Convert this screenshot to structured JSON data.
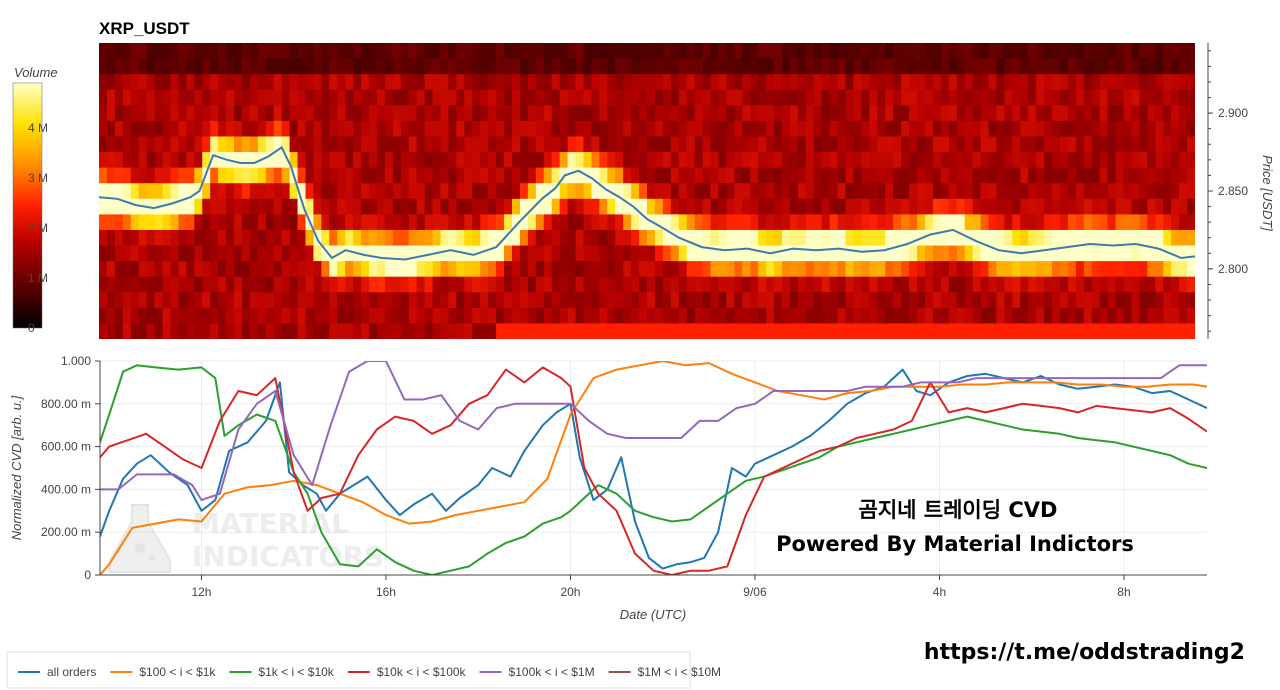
{
  "chart_data": [
    {
      "type": "heatmap",
      "title": "XRP_USDT",
      "ylabel": "Price [USDT]",
      "y_ticks": [
        2.8,
        2.85,
        2.9
      ],
      "y_tick_labels": [
        "2.800",
        "2.850",
        "2.900"
      ],
      "ylim": [
        2.755,
        2.945
      ],
      "colorbar": {
        "title": "Volume",
        "ticks": [
          0,
          1000000,
          2000000,
          3000000,
          4000000
        ],
        "tick_labels": [
          "0",
          "1 M",
          "2 M",
          "3 M",
          "4 M"
        ],
        "range": [
          0,
          4900000
        ],
        "colorscale": [
          "#000000",
          "#5a0000",
          "#b30000",
          "#ff2000",
          "#ff8c00",
          "#ffe000",
          "#ffffc8"
        ]
      },
      "price_series": {
        "name": "price",
        "color": "#3b7bb0",
        "x": [
          9.8,
          10.2,
          10.6,
          11.0,
          11.4,
          11.8,
          12.0,
          12.3,
          12.6,
          12.9,
          13.2,
          13.5,
          13.8,
          14.0,
          14.3,
          14.6,
          14.9,
          15.2,
          15.6,
          16.0,
          16.5,
          17.0,
          17.5,
          18.0,
          18.5,
          19.0,
          19.5,
          19.8,
          20.0,
          20.3,
          20.6,
          20.9,
          21.2,
          21.5,
          21.8,
          22.1,
          22.5,
          23.0,
          23.5,
          24.0,
          24.5,
          25.0,
          25.5,
          26.0,
          26.5,
          27.0,
          27.5,
          28.0,
          28.5,
          29.0,
          29.5,
          30.0,
          30.5,
          31.0,
          31.5,
          32.0,
          32.5,
          33.0,
          33.5,
          33.8
        ],
        "y": [
          2.846,
          2.845,
          2.841,
          2.839,
          2.842,
          2.846,
          2.85,
          2.873,
          2.87,
          2.868,
          2.868,
          2.872,
          2.878,
          2.866,
          2.838,
          2.818,
          2.807,
          2.812,
          2.809,
          2.807,
          2.806,
          2.809,
          2.812,
          2.809,
          2.814,
          2.83,
          2.845,
          2.852,
          2.86,
          2.863,
          2.858,
          2.851,
          2.846,
          2.84,
          2.832,
          2.827,
          2.82,
          2.814,
          2.812,
          2.813,
          2.81,
          2.813,
          2.812,
          2.813,
          2.811,
          2.812,
          2.816,
          2.822,
          2.825,
          2.818,
          2.812,
          2.81,
          2.812,
          2.814,
          2.816,
          2.815,
          2.816,
          2.813,
          2.807,
          2.808
        ]
      }
    },
    {
      "type": "line",
      "xlabel": "Date (UTC)",
      "ylabel": "Normalized CVD [arb. u.]",
      "ylim": [
        0,
        1
      ],
      "y_ticks": [
        0,
        0.2,
        0.4,
        0.6,
        0.8,
        1.0
      ],
      "y_tick_labels": [
        "0",
        "200.00 m",
        "400.00 m",
        "600.00 m",
        "800.00 m",
        "1.000"
      ],
      "xlim": [
        9.8,
        33.8
      ],
      "x_ticks": [
        12,
        16,
        20,
        24,
        28,
        32
      ],
      "x_tick_labels": [
        "12h",
        "16h",
        "20h",
        "9/06",
        "4h",
        "8h"
      ],
      "series": [
        {
          "name": "all orders",
          "color": "#1f77b4",
          "x": [
            9.8,
            10.0,
            10.3,
            10.6,
            10.9,
            11.3,
            11.7,
            12.0,
            12.3,
            12.6,
            13.0,
            13.4,
            13.7,
            13.9,
            14.2,
            14.5,
            14.7,
            15.0,
            15.3,
            15.6,
            16.0,
            16.3,
            16.6,
            17.0,
            17.3,
            17.6,
            18.0,
            18.3,
            18.7,
            19.0,
            19.4,
            19.7,
            20.0,
            20.2,
            20.5,
            20.8,
            21.1,
            21.4,
            21.7,
            22.0,
            22.3,
            22.6,
            22.9,
            23.2,
            23.5,
            23.8,
            24.0,
            24.4,
            24.8,
            25.2,
            25.6,
            26.0,
            26.4,
            26.8,
            27.2,
            27.5,
            27.8,
            28.2,
            28.6,
            29.0,
            29.4,
            29.8,
            30.2,
            30.6,
            31.0,
            31.4,
            31.8,
            32.2,
            32.6,
            33.0,
            33.4,
            33.8
          ],
          "y": [
            0.18,
            0.3,
            0.45,
            0.52,
            0.56,
            0.48,
            0.42,
            0.3,
            0.35,
            0.58,
            0.62,
            0.72,
            0.9,
            0.48,
            0.42,
            0.38,
            0.3,
            0.38,
            0.42,
            0.46,
            0.35,
            0.28,
            0.33,
            0.38,
            0.3,
            0.36,
            0.42,
            0.5,
            0.46,
            0.58,
            0.7,
            0.76,
            0.8,
            0.55,
            0.35,
            0.4,
            0.55,
            0.25,
            0.08,
            0.03,
            0.05,
            0.06,
            0.08,
            0.2,
            0.5,
            0.46,
            0.52,
            0.56,
            0.6,
            0.65,
            0.72,
            0.8,
            0.85,
            0.88,
            0.96,
            0.86,
            0.84,
            0.9,
            0.93,
            0.94,
            0.92,
            0.9,
            0.93,
            0.89,
            0.87,
            0.88,
            0.89,
            0.88,
            0.85,
            0.86,
            0.82,
            0.78
          ]
        },
        {
          "name": "$100 < i < $1k",
          "color": "#ff7f0e",
          "x": [
            9.8,
            10.0,
            10.5,
            11.0,
            11.5,
            12.0,
            12.5,
            13.0,
            13.5,
            14.0,
            14.5,
            15.0,
            15.5,
            16.0,
            16.5,
            17.0,
            17.5,
            18.0,
            18.5,
            19.0,
            19.5,
            20.0,
            20.5,
            21.0,
            21.5,
            22.0,
            22.5,
            23.0,
            23.5,
            24.0,
            24.5,
            25.0,
            25.5,
            26.0,
            26.5,
            27.0,
            27.5,
            28.0,
            28.5,
            29.0,
            29.5,
            30.0,
            30.5,
            31.0,
            31.5,
            32.0,
            32.5,
            33.0,
            33.5,
            33.8
          ],
          "y": [
            0.0,
            0.05,
            0.22,
            0.24,
            0.26,
            0.25,
            0.38,
            0.41,
            0.42,
            0.44,
            0.42,
            0.38,
            0.34,
            0.28,
            0.24,
            0.25,
            0.28,
            0.3,
            0.32,
            0.34,
            0.45,
            0.75,
            0.92,
            0.96,
            0.98,
            1.0,
            0.98,
            0.99,
            0.94,
            0.9,
            0.86,
            0.84,
            0.82,
            0.85,
            0.86,
            0.88,
            0.88,
            0.88,
            0.89,
            0.89,
            0.9,
            0.9,
            0.9,
            0.89,
            0.89,
            0.88,
            0.88,
            0.89,
            0.89,
            0.88
          ]
        },
        {
          "name": "$1k < i < $10k",
          "color": "#2ca02c",
          "x": [
            9.8,
            10.0,
            10.3,
            10.6,
            11.0,
            11.5,
            12.0,
            12.3,
            12.5,
            12.8,
            13.2,
            13.6,
            14.0,
            14.3,
            14.6,
            15.0,
            15.4,
            15.8,
            16.2,
            16.6,
            17.0,
            17.4,
            17.8,
            18.2,
            18.6,
            19.0,
            19.4,
            19.8,
            20.0,
            20.3,
            20.6,
            21.0,
            21.4,
            21.8,
            22.2,
            22.6,
            23.0,
            23.4,
            23.8,
            24.2,
            24.6,
            25.0,
            25.4,
            25.8,
            26.2,
            26.6,
            27.0,
            27.4,
            27.8,
            28.2,
            28.6,
            29.0,
            29.4,
            29.8,
            30.2,
            30.6,
            31.0,
            31.4,
            31.8,
            32.2,
            32.6,
            33.0,
            33.4,
            33.8
          ],
          "y": [
            0.62,
            0.75,
            0.95,
            0.98,
            0.97,
            0.96,
            0.97,
            0.92,
            0.65,
            0.7,
            0.75,
            0.72,
            0.48,
            0.38,
            0.2,
            0.05,
            0.04,
            0.12,
            0.06,
            0.02,
            0.0,
            0.02,
            0.04,
            0.1,
            0.15,
            0.18,
            0.24,
            0.27,
            0.3,
            0.36,
            0.42,
            0.38,
            0.3,
            0.27,
            0.25,
            0.26,
            0.32,
            0.38,
            0.44,
            0.46,
            0.49,
            0.52,
            0.55,
            0.6,
            0.62,
            0.64,
            0.66,
            0.68,
            0.7,
            0.72,
            0.74,
            0.72,
            0.7,
            0.68,
            0.67,
            0.66,
            0.64,
            0.63,
            0.62,
            0.6,
            0.58,
            0.56,
            0.52,
            0.5
          ]
        },
        {
          "name": "$10k < i < $100k",
          "color": "#d62728",
          "x": [
            9.8,
            10.0,
            10.4,
            10.8,
            11.2,
            11.6,
            12.0,
            12.4,
            12.8,
            13.2,
            13.6,
            14.0,
            14.3,
            14.6,
            15.0,
            15.4,
            15.8,
            16.2,
            16.6,
            17.0,
            17.4,
            17.8,
            18.2,
            18.6,
            19.0,
            19.4,
            19.8,
            20.0,
            20.3,
            20.6,
            21.0,
            21.4,
            21.8,
            22.2,
            22.6,
            23.0,
            23.4,
            23.8,
            24.2,
            24.6,
            25.0,
            25.4,
            25.8,
            26.2,
            26.6,
            27.0,
            27.4,
            27.8,
            28.2,
            28.6,
            29.0,
            29.4,
            29.8,
            30.2,
            30.6,
            31.0,
            31.4,
            31.8,
            32.2,
            32.6,
            33.0,
            33.4,
            33.8
          ],
          "y": [
            0.55,
            0.6,
            0.63,
            0.66,
            0.6,
            0.54,
            0.5,
            0.72,
            0.86,
            0.84,
            0.92,
            0.48,
            0.3,
            0.36,
            0.38,
            0.56,
            0.68,
            0.74,
            0.72,
            0.66,
            0.7,
            0.8,
            0.84,
            0.96,
            0.9,
            0.97,
            0.92,
            0.88,
            0.5,
            0.38,
            0.3,
            0.1,
            0.02,
            0.0,
            0.02,
            0.02,
            0.04,
            0.28,
            0.46,
            0.5,
            0.54,
            0.58,
            0.6,
            0.64,
            0.66,
            0.68,
            0.72,
            0.9,
            0.76,
            0.78,
            0.76,
            0.78,
            0.8,
            0.79,
            0.78,
            0.76,
            0.79,
            0.78,
            0.77,
            0.76,
            0.78,
            0.73,
            0.67
          ]
        },
        {
          "name": "$100k < i < $1M",
          "color": "#9467bd",
          "x": [
            9.8,
            10.2,
            10.6,
            11.0,
            11.4,
            11.8,
            12.0,
            12.4,
            12.8,
            13.2,
            13.6,
            14.0,
            14.4,
            14.8,
            15.2,
            15.6,
            16.0,
            16.4,
            16.8,
            17.2,
            17.6,
            18.0,
            18.4,
            18.8,
            19.2,
            19.6,
            20.0,
            20.4,
            20.8,
            21.2,
            21.6,
            22.0,
            22.4,
            22.8,
            23.2,
            23.6,
            24.0,
            24.4,
            24.8,
            25.2,
            25.6,
            26.0,
            26.4,
            26.8,
            27.2,
            27.6,
            28.0,
            28.4,
            28.8,
            29.2,
            29.6,
            30.0,
            30.4,
            30.8,
            31.2,
            31.6,
            32.0,
            32.4,
            32.8,
            33.2,
            33.6,
            33.8
          ],
          "y": [
            0.4,
            0.4,
            0.47,
            0.47,
            0.47,
            0.42,
            0.35,
            0.38,
            0.68,
            0.8,
            0.86,
            0.56,
            0.42,
            0.7,
            0.95,
            1.0,
            1.0,
            0.82,
            0.82,
            0.84,
            0.72,
            0.68,
            0.78,
            0.8,
            0.8,
            0.8,
            0.8,
            0.72,
            0.66,
            0.64,
            0.64,
            0.64,
            0.64,
            0.72,
            0.72,
            0.78,
            0.8,
            0.86,
            0.86,
            0.86,
            0.86,
            0.86,
            0.88,
            0.88,
            0.88,
            0.9,
            0.9,
            0.9,
            0.92,
            0.92,
            0.92,
            0.92,
            0.92,
            0.92,
            0.92,
            0.92,
            0.92,
            0.92,
            0.92,
            0.98,
            0.98,
            0.98
          ]
        },
        {
          "name": "$1M < i < $10M",
          "color": "#8c564b",
          "x": [],
          "y": []
        }
      ]
    }
  ],
  "overlay": {
    "title_line": "곰지네 트레이딩 CVD",
    "subtitle_line": "Powered By Material Indictors",
    "url": "https://t.me/oddstrading2",
    "logo_line1": "MATERIAL",
    "logo_line2": "INDICATORS"
  }
}
